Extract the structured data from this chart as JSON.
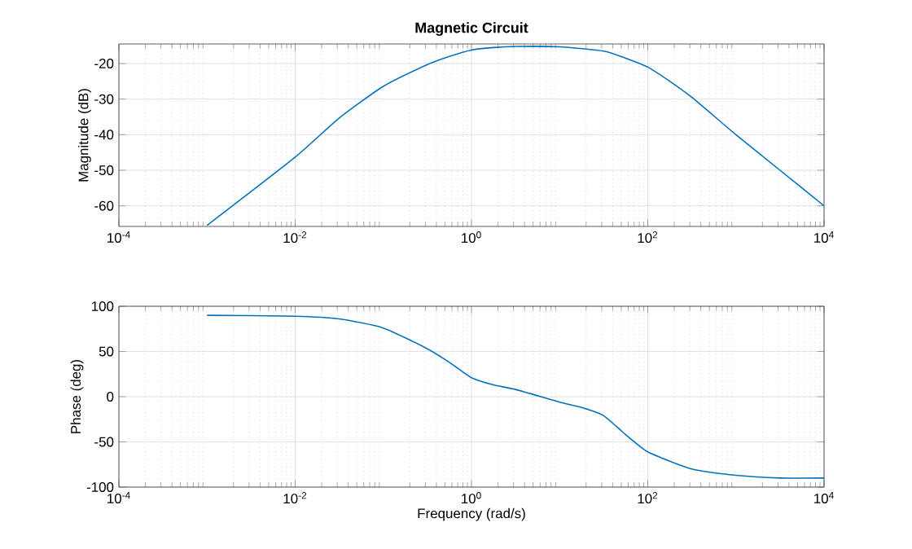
{
  "chart_data": [
    {
      "type": "line",
      "title": "Magnetic Circuit",
      "ylabel": "Magnitude (dB)",
      "log": "x",
      "grid": true,
      "x": [
        0.001,
        0.01,
        0.0316,
        0.1,
        0.316,
        0.562,
        1,
        1.78,
        3.16,
        10,
        31.6,
        56.2,
        100,
        178,
        316,
        1000,
        3160,
        10000
      ],
      "series": [
        {
          "color": "#0072bd",
          "values": [
            -65.5,
            -46.3,
            -35.3,
            -26.4,
            -20.3,
            -18,
            -16.2,
            -15.5,
            -15.2,
            -15.3,
            -16.5,
            -18.5,
            -21,
            -25,
            -29.5,
            -40,
            -50,
            -60
          ]
        }
      ],
      "xlim": [
        0.0001,
        10000
      ],
      "ylim": [
        -65.8,
        -14.5
      ],
      "xticks": [
        {
          "value": 0.0001,
          "label": "10$^{-4}$"
        },
        {
          "value": 0.01,
          "label": "10$^{-2}$"
        },
        {
          "value": 1,
          "label": "10$^{0}$"
        },
        {
          "value": 100,
          "label": "10$^{2}$"
        },
        {
          "value": 10000,
          "label": "10$^{4}$"
        }
      ],
      "yticks": [
        -60,
        -50,
        -40,
        -30,
        -20
      ]
    },
    {
      "type": "line",
      "xlabel": "Frequency (rad/s)",
      "ylabel": "Phase (deg)",
      "log": "x",
      "grid": true,
      "x": [
        0.001,
        0.01,
        0.0316,
        0.1,
        0.316,
        0.562,
        1,
        1.78,
        3.16,
        10,
        17.8,
        31.6,
        56.2,
        100,
        316,
        1000,
        3160,
        10000
      ],
      "series": [
        {
          "color": "#0072bd",
          "values": [
            90,
            89,
            86,
            76,
            53,
            38,
            21,
            13,
            8,
            -6,
            -12,
            -21,
            -42,
            -61,
            -80,
            -87,
            -90,
            -90
          ]
        }
      ],
      "xlim": [
        0.0001,
        10000
      ],
      "ylim": [
        -100,
        100
      ],
      "xticks": [
        {
          "value": 0.0001,
          "label": "10$^{-4}$"
        },
        {
          "value": 0.01,
          "label": "10$^{-2}$"
        },
        {
          "value": 1,
          "label": "10$^{0}$"
        },
        {
          "value": 100,
          "label": "10$^{2}$"
        },
        {
          "value": 10000,
          "label": "10$^{4}$"
        }
      ],
      "yticks": [
        -100,
        -50,
        0,
        50,
        100
      ]
    }
  ]
}
